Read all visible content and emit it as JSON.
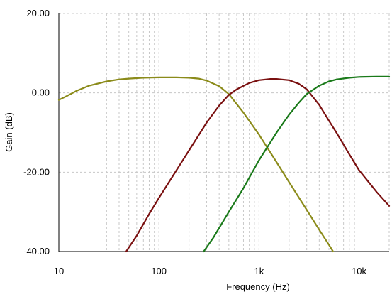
{
  "chart_data": {
    "type": "line",
    "xlabel": "Frequency (Hz)",
    "ylabel": "Gain (dB)",
    "x_scale": "log",
    "xlim": [
      10,
      20000
    ],
    "ylim": [
      -40,
      20
    ],
    "grid": true,
    "x_ticks": [
      {
        "value": 10,
        "label": "10"
      },
      {
        "value": 100,
        "label": "100"
      },
      {
        "value": 1000,
        "label": "1k"
      },
      {
        "value": 10000,
        "label": "10k"
      }
    ],
    "y_ticks": [
      {
        "value": 20,
        "label": "20.00"
      },
      {
        "value": 0,
        "label": "0.00"
      },
      {
        "value": -20,
        "label": "-20.00"
      },
      {
        "value": -40,
        "label": "-40.00"
      }
    ],
    "series": [
      {
        "color": "#8b8b1a",
        "x": [
          10,
          12,
          15,
          20,
          30,
          40,
          50,
          70,
          100,
          150,
          200,
          250,
          300,
          400,
          500,
          700,
          1000,
          1500,
          2000,
          3000,
          4000,
          5000,
          5500
        ],
        "y": [
          -1.8,
          -0.8,
          0.5,
          1.8,
          2.9,
          3.4,
          3.6,
          3.8,
          3.9,
          3.9,
          3.8,
          3.6,
          3.1,
          1.7,
          -0.3,
          -5.0,
          -10.5,
          -17.5,
          -22.5,
          -29.5,
          -34.5,
          -38.3,
          -40
        ]
      },
      {
        "color": "#7a1010",
        "x": [
          47,
          60,
          80,
          100,
          150,
          200,
          300,
          400,
          500,
          600,
          800,
          1000,
          1300,
          1500,
          2000,
          2500,
          3000,
          4000,
          5000,
          6000,
          8000,
          10000,
          15000,
          20000
        ],
        "y": [
          -40,
          -36,
          -30.5,
          -26.5,
          -19.5,
          -14.5,
          -7.5,
          -3.2,
          -0.5,
          0.9,
          2.5,
          3.2,
          3.5,
          3.5,
          3.2,
          2.3,
          0.9,
          -3.0,
          -7.0,
          -10.2,
          -15.5,
          -19.5,
          -25.0,
          -28.5
        ]
      },
      {
        "color": "#1a7a1a",
        "x": [
          280,
          350,
          500,
          700,
          1000,
          1500,
          2000,
          2500,
          3000,
          4000,
          5000,
          6000,
          8000,
          10000,
          15000,
          20000
        ],
        "y": [
          -40,
          -36.5,
          -30,
          -24,
          -17,
          -10,
          -5.5,
          -2.5,
          -0.3,
          1.8,
          2.9,
          3.4,
          3.8,
          4.0,
          4.1,
          4.1
        ]
      }
    ]
  }
}
